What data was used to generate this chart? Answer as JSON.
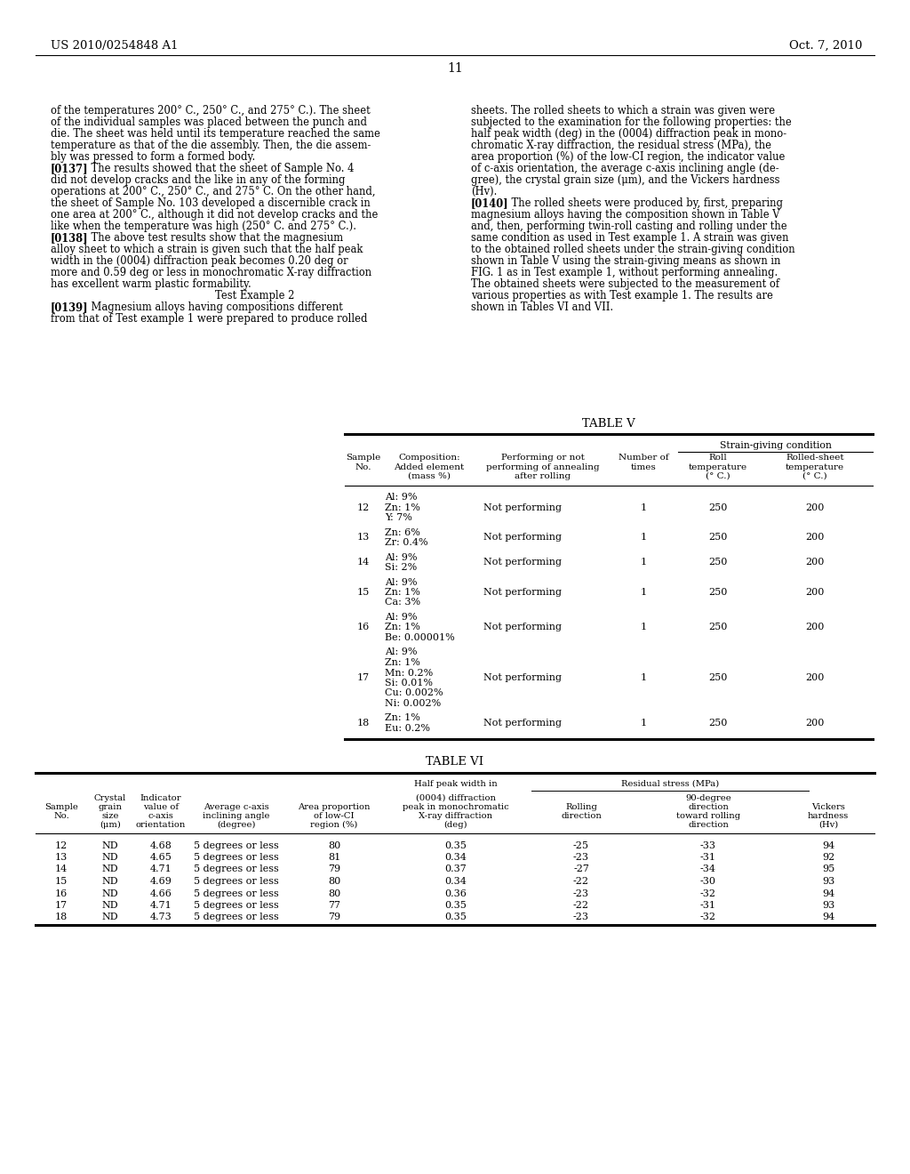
{
  "page_number": "11",
  "patent_number": "US 2010/0254848 A1",
  "patent_date": "Oct. 7, 2010",
  "background_color": "#ffffff",
  "text_color": "#000000",
  "left_col_lines": [
    "of the temperatures 200° C., 250° C., and 275° C.). The sheet",
    "of the individual samples was placed between the punch and",
    "die. The sheet was held until its temperature reached the same",
    "temperature as that of the die assembly. Then, the die assem-",
    "bly was pressed to form a formed body.",
    "[0137]    The results showed that the sheet of Sample No. 4",
    "did not develop cracks and the like in any of the forming",
    "operations at 200° C., 250° C., and 275° C. On the other hand,",
    "the sheet of Sample No. 103 developed a discernible crack in",
    "one area at 200° C., although it did not develop cracks and the",
    "like when the temperature was high (250° C. and 275° C.).",
    "[0138]    The above test results show that the magnesium",
    "alloy sheet to which a strain is given such that the half peak",
    "width in the (0004) diffraction peak becomes 0.20 deg or",
    "more and 0.59 deg or less in monochromatic X-ray diffraction",
    "has excellent warm plastic formability.",
    "CENTER:Test Example 2",
    "[0139]    Magnesium alloys having compositions different",
    "from that of Test example 1 were prepared to produce rolled"
  ],
  "right_col_lines": [
    "sheets. The rolled sheets to which a strain was given were",
    "subjected to the examination for the following properties: the",
    "half peak width (deg) in the (0004) diffraction peak in mono-",
    "chromatic X-ray diffraction, the residual stress (MPa), the",
    "area proportion (%) of the low-CI region, the indicator value",
    "of c-axis orientation, the average c-axis inclining angle (de-",
    "gree), the crystal grain size (μm), and the Vickers hardness",
    "(Hv).",
    "[0140]    The rolled sheets were produced by, first, preparing",
    "magnesium alloys having the composition shown in Table V",
    "and, then, performing twin-roll casting and rolling under the",
    "same condition as used in Test example 1. A strain was given",
    "to the obtained rolled sheets under the strain-giving condition",
    "shown in Table V using the strain-giving means as shown in",
    "FIG. 1 as in Test example 1, without performing annealing.",
    "The obtained sheets were subjected to the measurement of",
    "various properties as with Test example 1. The results are",
    "shown in Tables VI and VII."
  ],
  "table5_title": "TABLE V",
  "table5_strain_label": "Strain-giving condition",
  "table5_hdr_sample": [
    "Sample",
    "No."
  ],
  "table5_hdr_comp": [
    "Composition:",
    "Added element",
    "(mass %)"
  ],
  "table5_hdr_perf": [
    "Performing or not",
    "performing of annealing",
    "after rolling"
  ],
  "table5_hdr_num": [
    "Number of",
    "times"
  ],
  "table5_hdr_roll": [
    "Roll",
    "temperature",
    "(° C.)"
  ],
  "table5_hdr_sheet": [
    "Rolled-sheet",
    "temperature",
    "(° C.)"
  ],
  "table5_data": [
    {
      "no": "12",
      "comp": [
        "Al: 9%",
        "Zn: 1%",
        "Y: 7%"
      ],
      "anneal": "Not performing",
      "times": "1",
      "roll_temp": "250",
      "sheet_temp": "200"
    },
    {
      "no": "13",
      "comp": [
        "Zn: 6%",
        "Zr: 0.4%"
      ],
      "anneal": "Not performing",
      "times": "1",
      "roll_temp": "250",
      "sheet_temp": "200"
    },
    {
      "no": "14",
      "comp": [
        "Al: 9%",
        "Si: 2%"
      ],
      "anneal": "Not performing",
      "times": "1",
      "roll_temp": "250",
      "sheet_temp": "200"
    },
    {
      "no": "15",
      "comp": [
        "Al: 9%",
        "Zn: 1%",
        "Ca: 3%"
      ],
      "anneal": "Not performing",
      "times": "1",
      "roll_temp": "250",
      "sheet_temp": "200"
    },
    {
      "no": "16",
      "comp": [
        "Al: 9%",
        "Zn: 1%",
        "Be: 0.00001%"
      ],
      "anneal": "Not performing",
      "times": "1",
      "roll_temp": "250",
      "sheet_temp": "200"
    },
    {
      "no": "17",
      "comp": [
        "Al: 9%",
        "Zn: 1%",
        "Mn: 0.2%",
        "Si: 0.01%",
        "Cu: 0.002%",
        "Ni: 0.002%"
      ],
      "anneal": "Not performing",
      "times": "1",
      "roll_temp": "250",
      "sheet_temp": "200"
    },
    {
      "no": "18",
      "comp": [
        "Zn: 1%",
        "Eu: 0.2%"
      ],
      "anneal": "Not performing",
      "times": "1",
      "roll_temp": "250",
      "sheet_temp": "200"
    }
  ],
  "table6_title": "TABLE VI",
  "table6_grp_half": "Half peak width in",
  "table6_grp_residual": "Residual stress (MPa)",
  "table6_hdr_sample": [
    "Sample",
    "No."
  ],
  "table6_hdr_grain": [
    "Crystal",
    "grain",
    "size",
    "(μm)"
  ],
  "table6_hdr_indicator": [
    "Indicator",
    "value of",
    "c-axis",
    "orientation"
  ],
  "table6_hdr_avg": [
    "Average c-axis",
    "inclining angle",
    "(degree)"
  ],
  "table6_hdr_area": [
    "Area proportion",
    "of low-CI",
    "region (%)"
  ],
  "table6_hdr_half": [
    "(0004) diffraction",
    "peak in monochromatic",
    "X-ray diffraction",
    "(deg)"
  ],
  "table6_hdr_rolling": [
    "Rolling",
    "direction"
  ],
  "table6_hdr_ninety": [
    "90-degree",
    "direction",
    "toward rolling",
    "direction"
  ],
  "table6_hdr_vickers": [
    "Vickers",
    "hardness",
    "(Hv)"
  ],
  "table6_data": [
    {
      "no": "12",
      "grain": "ND",
      "indicator": "4.68",
      "avg_angle": "5 degrees or less",
      "area": "80",
      "half_peak": "0.35",
      "rolling": "-25",
      "ninety": "-33",
      "vickers": "94"
    },
    {
      "no": "13",
      "grain": "ND",
      "indicator": "4.65",
      "avg_angle": "5 degrees or less",
      "area": "81",
      "half_peak": "0.34",
      "rolling": "-23",
      "ninety": "-31",
      "vickers": "92"
    },
    {
      "no": "14",
      "grain": "ND",
      "indicator": "4.71",
      "avg_angle": "5 degrees or less",
      "area": "79",
      "half_peak": "0.37",
      "rolling": "-27",
      "ninety": "-34",
      "vickers": "95"
    },
    {
      "no": "15",
      "grain": "ND",
      "indicator": "4.69",
      "avg_angle": "5 degrees or less",
      "area": "80",
      "half_peak": "0.34",
      "rolling": "-22",
      "ninety": "-30",
      "vickers": "93"
    },
    {
      "no": "16",
      "grain": "ND",
      "indicator": "4.66",
      "avg_angle": "5 degrees or less",
      "area": "80",
      "half_peak": "0.36",
      "rolling": "-23",
      "ninety": "-32",
      "vickers": "94"
    },
    {
      "no": "17",
      "grain": "ND",
      "indicator": "4.71",
      "avg_angle": "5 degrees or less",
      "area": "77",
      "half_peak": "0.35",
      "rolling": "-22",
      "ninety": "-31",
      "vickers": "93"
    },
    {
      "no": "18",
      "grain": "ND",
      "indicator": "4.73",
      "avg_angle": "5 degrees or less",
      "area": "79",
      "half_peak": "0.35",
      "rolling": "-23",
      "ninety": "-32",
      "vickers": "94"
    }
  ]
}
